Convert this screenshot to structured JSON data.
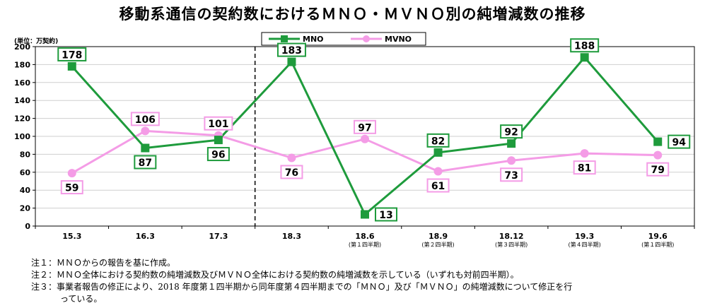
{
  "title": "移動系通信の契約数におけるＭＮＯ・ＭＶＮＯ別の純増減数の推移",
  "unit_label": "(単位：万契約)",
  "chart_data": {
    "type": "line",
    "categories": [
      {
        "label": "15.3",
        "sub": ""
      },
      {
        "label": "16.3",
        "sub": ""
      },
      {
        "label": "17.3",
        "sub": ""
      },
      {
        "label": "18.3",
        "sub": ""
      },
      {
        "label": "18.6",
        "sub": "(第１四半期)"
      },
      {
        "label": "18.9",
        "sub": "(第２四半期)"
      },
      {
        "label": "18.12",
        "sub": "(第３四半期)"
      },
      {
        "label": "19.3",
        "sub": "(第４四半期)"
      },
      {
        "label": "19.6",
        "sub": "(第１四半期)"
      }
    ],
    "series": [
      {
        "name": "MNO",
        "color": "#1e9b3c",
        "marker": "square",
        "values": [
          178,
          87,
          96,
          183,
          13,
          82,
          92,
          188,
          94
        ]
      },
      {
        "name": "MVNO",
        "color": "#f49ce6",
        "marker": "circle",
        "values": [
          59,
          106,
          101,
          76,
          97,
          61,
          73,
          81,
          79
        ]
      }
    ],
    "ylim": [
      0,
      200
    ],
    "yticks": [
      0,
      20,
      40,
      60,
      80,
      100,
      120,
      140,
      160,
      180,
      200
    ],
    "grid": true,
    "legend": "top-center",
    "divider_after_category": 2
  },
  "notes": [
    "注１：ＭＮＯからの報告を基に作成。",
    "注２：ＭＮＯ全体における契約数の純増減数及びＭＶＮＯ全体における契約数の純増減数を示している（いずれも対前四半期）。",
    "注３：事業者報告の修正により、2018 年度第１四半期から同年度第４四半期までの「ＭＮＯ」及び「ＭＶＮＯ」の純増減数について修正を行",
    "っている。"
  ]
}
